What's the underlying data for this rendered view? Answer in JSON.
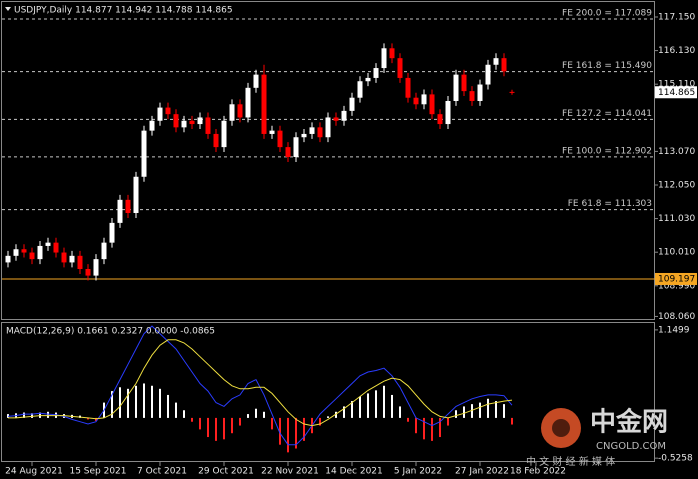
{
  "chart_data": [
    {
      "type": "candlestick",
      "title": "USDJPY,Daily  114.877 114.942 114.788 114.865",
      "categories": [
        null,
        null,
        null,
        "24 Aug 2021",
        null,
        null,
        null,
        null,
        null,
        null,
        null,
        "15 Sep 2021",
        null,
        null,
        null,
        null,
        null,
        null,
        null,
        "7 Oct 2021",
        null,
        null,
        null,
        null,
        null,
        null,
        null,
        "29 Oct 2021",
        null,
        null,
        null,
        null,
        null,
        null,
        null,
        "22 Nov 2021",
        null,
        null,
        null,
        null,
        null,
        null,
        null,
        "14 Dec 2021",
        null,
        null,
        null,
        null,
        null,
        null,
        null,
        "5 Jan 2022",
        null,
        null,
        null,
        null,
        null,
        null,
        null,
        "27 Jan 2022",
        null,
        null,
        null,
        null,
        null,
        null,
        "18 Feb 2022",
        null
      ],
      "open": [
        109.7,
        109.9,
        110.1,
        110.0,
        109.8,
        110.2,
        110.3,
        110.0,
        109.7,
        109.9,
        109.5,
        109.3,
        109.8,
        110.3,
        110.9,
        111.6,
        111.2,
        112.3,
        113.7,
        114.0,
        114.4,
        114.2,
        113.8,
        114.0,
        113.9,
        114.1,
        113.6,
        113.2,
        114.0,
        114.5,
        114.1,
        115.0,
        115.4,
        113.6,
        113.7,
        113.2,
        112.9,
        113.5,
        113.6,
        113.8,
        113.5,
        114.1,
        114.0,
        114.3,
        114.7,
        115.2,
        115.3,
        115.6,
        116.2,
        115.9,
        115.3,
        114.7,
        114.5,
        114.8,
        114.2,
        113.9,
        114.6,
        115.4,
        114.9,
        114.6,
        115.1,
        115.7,
        115.9,
        114.877,
        null,
        null,
        null,
        null
      ],
      "high": [
        110.05,
        110.25,
        110.25,
        110.15,
        110.35,
        110.45,
        110.45,
        110.15,
        110.05,
        110.05,
        109.65,
        109.95,
        110.45,
        111.05,
        111.75,
        111.75,
        112.45,
        113.85,
        114.15,
        114.55,
        114.55,
        114.35,
        114.15,
        114.15,
        114.25,
        114.25,
        113.75,
        114.15,
        114.65,
        114.65,
        115.15,
        115.55,
        115.7,
        113.85,
        113.85,
        113.35,
        113.65,
        113.75,
        113.95,
        113.95,
        114.25,
        114.25,
        114.45,
        114.85,
        115.35,
        115.45,
        115.75,
        116.35,
        116.35,
        116.05,
        115.45,
        114.85,
        114.95,
        114.95,
        114.35,
        114.75,
        115.55,
        115.55,
        115.05,
        115.25,
        115.85,
        116.05,
        116.05,
        114.942,
        null,
        null,
        null,
        null
      ],
      "low": [
        109.55,
        109.75,
        109.85,
        109.65,
        109.65,
        110.05,
        109.85,
        109.55,
        109.55,
        109.35,
        109.15,
        109.15,
        109.65,
        110.15,
        110.75,
        111.05,
        111.05,
        112.15,
        113.55,
        113.85,
        114.05,
        113.65,
        113.65,
        113.75,
        113.75,
        113.45,
        113.05,
        113.05,
        113.85,
        113.95,
        113.95,
        114.85,
        113.45,
        113.45,
        113.05,
        112.75,
        112.75,
        113.35,
        113.45,
        113.35,
        113.35,
        113.85,
        113.85,
        114.15,
        114.55,
        115.05,
        115.15,
        115.45,
        115.75,
        115.15,
        114.55,
        114.35,
        114.35,
        114.05,
        113.75,
        113.75,
        114.45,
        114.75,
        114.45,
        114.45,
        114.95,
        115.55,
        115.35,
        114.788,
        null,
        null,
        null,
        null
      ],
      "close": [
        109.9,
        110.1,
        110.0,
        109.8,
        110.2,
        110.3,
        110.0,
        109.7,
        109.9,
        109.5,
        109.3,
        109.8,
        110.3,
        110.9,
        111.6,
        111.2,
        112.3,
        113.7,
        114.0,
        114.4,
        114.2,
        113.8,
        114.0,
        113.9,
        114.1,
        113.6,
        113.2,
        114.0,
        114.5,
        114.1,
        115.0,
        115.4,
        113.6,
        113.7,
        113.2,
        112.9,
        113.5,
        113.6,
        113.8,
        113.5,
        114.1,
        114.0,
        114.3,
        114.7,
        115.2,
        115.3,
        115.6,
        116.2,
        115.9,
        115.3,
        114.7,
        114.5,
        114.8,
        114.2,
        113.9,
        114.6,
        115.4,
        114.9,
        114.6,
        115.1,
        115.7,
        115.9,
        115.5,
        114.865,
        null,
        null,
        null,
        null
      ],
      "up_color": "#ffffff",
      "down_color": "#ff0000",
      "ylim": [
        107.952,
        117.514
      ],
      "yticks": [
        {
          "value": 117.15,
          "label": "117.150"
        },
        {
          "value": 116.13,
          "label": "116.130"
        },
        {
          "value": 115.11,
          "label": "115.110"
        },
        {
          "value": 113.07,
          "label": "113.070"
        },
        {
          "value": 112.05,
          "label": "112.050"
        },
        {
          "value": 111.03,
          "label": "111.030"
        },
        {
          "value": 110.01,
          "label": "110.010"
        },
        {
          "value": 108.99,
          "label": "108.990"
        },
        {
          "value": 108.06,
          "label": "108.060"
        }
      ],
      "levels": [
        {
          "value": 117.089,
          "label": "FE 200.0 = 117.089"
        },
        {
          "value": 115.49,
          "label": "FE 161.8 = 115.490"
        },
        {
          "value": 114.041,
          "label": "FE 127.2 = 114.041"
        },
        {
          "value": 112.902,
          "label": "FE 100.0 = 112.902"
        },
        {
          "value": 111.303,
          "label": "FE 61.8 = 111.303"
        }
      ],
      "level_color": "#c8c8c8",
      "support": {
        "value": 109.197,
        "label": "109.197",
        "color": "#f5a623"
      },
      "last_price": {
        "value": 114.865,
        "label": "114.865"
      }
    },
    {
      "type": "macd",
      "title": "MACD(12,26,9) 0.1661 0.2327 0.0000 -0.0865",
      "histogram": {
        "up_color": "#ffffff",
        "down_color": "#ff2020",
        "values": [
          0.05,
          0.06,
          0.07,
          0.06,
          0.07,
          0.08,
          0.07,
          0.05,
          0.04,
          0.03,
          -0.02,
          -0.04,
          0.2,
          0.35,
          0.4,
          0.38,
          0.42,
          0.45,
          0.42,
          0.38,
          0.3,
          0.2,
          0.1,
          -0.05,
          -0.15,
          -0.25,
          -0.3,
          -0.28,
          -0.2,
          -0.1,
          0.05,
          0.12,
          0.08,
          -0.15,
          -0.35,
          -0.45,
          -0.4,
          -0.3,
          -0.2,
          -0.1,
          0.02,
          0.08,
          0.15,
          0.22,
          0.28,
          0.32,
          0.36,
          0.42,
          0.3,
          0.15,
          -0.05,
          -0.2,
          -0.28,
          -0.3,
          -0.25,
          -0.1,
          0.1,
          0.15,
          0.18,
          0.2,
          0.25,
          0.22,
          0.18,
          -0.0865,
          null,
          null,
          null,
          null
        ]
      },
      "series": [
        {
          "color": "#2a3cff",
          "values": [
            0.02,
            0.03,
            0.05,
            0.05,
            0.06,
            0.05,
            0.04,
            0.02,
            -0.02,
            -0.05,
            -0.08,
            -0.05,
            0.1,
            0.3,
            0.5,
            0.7,
            0.9,
            1.1,
            1.2,
            1.1,
            1.0,
            0.9,
            0.75,
            0.6,
            0.45,
            0.35,
            0.2,
            0.15,
            0.25,
            0.3,
            0.45,
            0.5,
            0.3,
            0.05,
            -0.2,
            -0.35,
            -0.35,
            -0.25,
            -0.1,
            0.05,
            0.15,
            0.25,
            0.35,
            0.45,
            0.55,
            0.6,
            0.62,
            0.65,
            0.55,
            0.4,
            0.2,
            0.0,
            -0.05,
            -0.1,
            -0.05,
            0.05,
            0.15,
            0.2,
            0.25,
            0.28,
            0.3,
            0.3,
            0.29,
            0.1661,
            null,
            null,
            null,
            null
          ]
        },
        {
          "color": "#f0e040",
          "values": [
            0.0,
            0.0,
            0.01,
            0.02,
            0.03,
            0.03,
            0.03,
            0.03,
            0.02,
            0.01,
            0.0,
            -0.01,
            0.0,
            0.05,
            0.15,
            0.3,
            0.45,
            0.65,
            0.82,
            0.95,
            1.02,
            1.02,
            0.98,
            0.9,
            0.8,
            0.7,
            0.6,
            0.5,
            0.42,
            0.38,
            0.38,
            0.4,
            0.4,
            0.32,
            0.2,
            0.08,
            -0.02,
            -0.08,
            -0.1,
            -0.08,
            -0.02,
            0.05,
            0.12,
            0.2,
            0.28,
            0.36,
            0.42,
            0.48,
            0.52,
            0.5,
            0.42,
            0.3,
            0.18,
            0.08,
            0.02,
            0.0,
            0.03,
            0.06,
            0.1,
            0.14,
            0.18,
            0.2,
            0.22,
            0.2327,
            null,
            null,
            null,
            null
          ]
        }
      ],
      "ylim": [
        -0.55,
        1.24
      ],
      "yticks": [
        1.1499,
        -0.5258
      ]
    }
  ],
  "watermark": {
    "name": "中金网",
    "site": "CNGOLD.COM",
    "slogan": "中 文 财 经 新 媒 体"
  }
}
